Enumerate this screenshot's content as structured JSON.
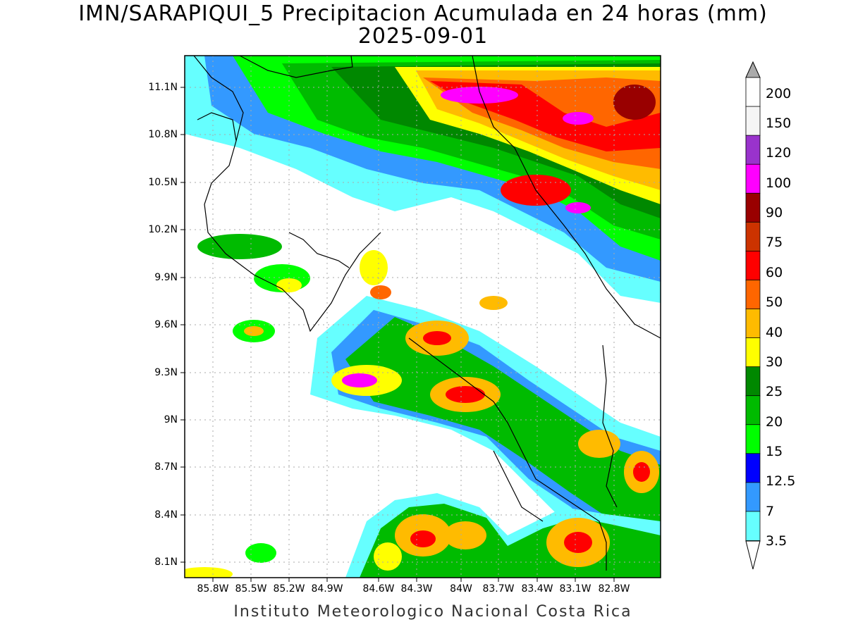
{
  "title_line1": "IMN/SARAPIQUI_5 Precipitacion Acumulada en 24 horas (mm)",
  "title_line2": "2025-09-01",
  "footer": "Instituto Meteorologico Nacional Costa Rica",
  "map": {
    "lon_range": [
      -86.0,
      -82.6
    ],
    "lat_range": [
      8.0,
      11.3
    ],
    "lat_ticks": [
      "11.1N",
      "10.8N",
      "10.5N",
      "10.2N",
      "9.9N",
      "9.6N",
      "9.3N",
      "9N",
      "8.7N",
      "8.4N",
      "8.1N"
    ],
    "lon_ticks": [
      "85.8W",
      "85.5W",
      "85.2W",
      "84.9W",
      "84.6W",
      "84.3W",
      "84W",
      "83.7W",
      "83.4W",
      "83.1W",
      "82.8W"
    ],
    "grid": true
  },
  "colorbar": {
    "labels": [
      "200",
      "150",
      "120",
      "100",
      "90",
      "75",
      "60",
      "50",
      "40",
      "30",
      "25",
      "20",
      "15",
      "12.5",
      "7",
      "3.5"
    ],
    "colors": [
      "#ffffff",
      "#f5f5f5",
      "#9933cc",
      "#ff00ff",
      "#990000",
      "#cc3300",
      "#ff0000",
      "#ff6600",
      "#ffbb00",
      "#ffff00",
      "#008800",
      "#00bb00",
      "#00ff00",
      "#0000ff",
      "#3399ff",
      "#66ffff"
    ],
    "top_arrow_color": "#aaaaaa",
    "bottom_arrow_color": "#ffffff"
  }
}
